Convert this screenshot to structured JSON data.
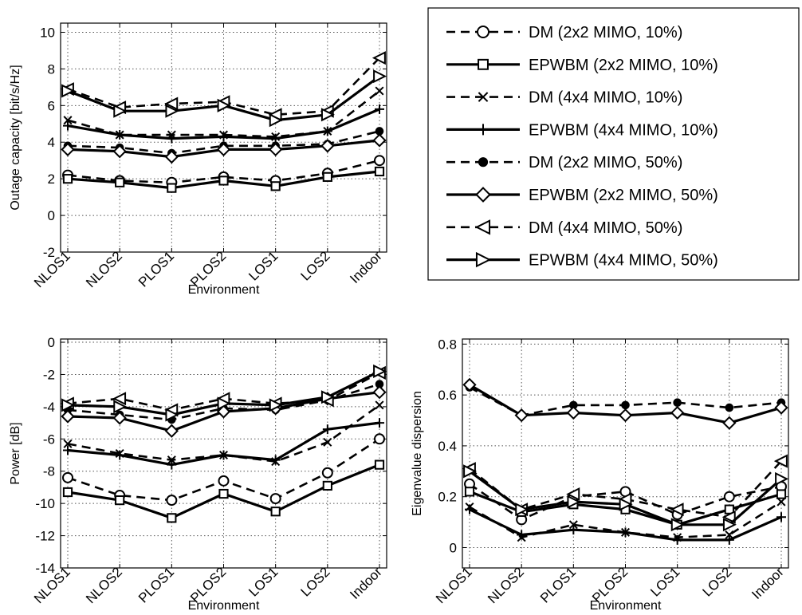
{
  "chart_data": [
    {
      "type": "line",
      "id": "capacity",
      "xlabel": "Environment",
      "ylabel": "Outage capacity [bit/s/Hz]",
      "categories": [
        "NLOS1",
        "NLOS2",
        "PLOS1",
        "PLOS2",
        "LOS1",
        "LOS2",
        "Indoor"
      ],
      "ylim": [
        -2,
        10.5
      ],
      "yticks": [
        -2,
        0,
        2,
        4,
        6,
        8,
        10
      ],
      "grid": true,
      "series": [
        {
          "name": "DM (2x2 MIMO, 10%)",
          "values": [
            2.2,
            1.9,
            1.8,
            2.1,
            1.9,
            2.3,
            3.0
          ]
        },
        {
          "name": "EPWBM (2x2 MIMO, 10%)",
          "values": [
            2.0,
            1.8,
            1.5,
            1.9,
            1.6,
            2.1,
            2.4
          ]
        },
        {
          "name": "DM (4x4 MIMO, 10%)",
          "values": [
            5.2,
            4.4,
            4.4,
            4.4,
            4.3,
            4.6,
            6.8
          ]
        },
        {
          "name": "EPWBM (4x4 MIMO, 10%)",
          "values": [
            4.9,
            4.4,
            4.2,
            4.3,
            4.2,
            4.6,
            5.8
          ]
        },
        {
          "name": "DM (2x2 MIMO, 50%)",
          "values": [
            3.8,
            3.7,
            3.4,
            3.8,
            3.8,
            3.9,
            4.6
          ]
        },
        {
          "name": "EPWBM (2x2 MIMO, 50%)",
          "values": [
            3.6,
            3.5,
            3.2,
            3.6,
            3.6,
            3.8,
            4.1
          ]
        },
        {
          "name": "DM (4x4 MIMO, 50%)",
          "values": [
            6.9,
            5.9,
            6.1,
            6.2,
            5.5,
            5.7,
            8.6
          ]
        },
        {
          "name": "EPWBM (4x4 MIMO, 50%)",
          "values": [
            6.8,
            5.7,
            5.7,
            6.0,
            5.2,
            5.5,
            7.6
          ]
        }
      ]
    },
    {
      "type": "line",
      "id": "power",
      "xlabel": "Environment",
      "ylabel": "Power [dB]",
      "categories": [
        "NLOS1",
        "NLOS2",
        "PLOS1",
        "PLOS2",
        "LOS1",
        "LOS2",
        "Indoor"
      ],
      "ylim": [
        -14,
        0.2
      ],
      "yticks": [
        -14,
        -12,
        -10,
        -8,
        -6,
        -4,
        -2,
        0
      ],
      "grid": true,
      "series": [
        {
          "name": "DM (2x2 MIMO, 10%)",
          "values": [
            -8.4,
            -9.5,
            -9.8,
            -8.6,
            -9.7,
            -8.1,
            -6.0
          ]
        },
        {
          "name": "EPWBM (2x2 MIMO, 10%)",
          "values": [
            -9.3,
            -9.8,
            -10.9,
            -9.4,
            -10.5,
            -8.9,
            -7.6
          ]
        },
        {
          "name": "DM (4x4 MIMO, 10%)",
          "values": [
            -6.3,
            -6.9,
            -7.3,
            -7.0,
            -7.4,
            -6.2,
            -3.9
          ]
        },
        {
          "name": "EPWBM (4x4 MIMO, 10%)",
          "values": [
            -6.7,
            -7.0,
            -7.6,
            -7.0,
            -7.3,
            -5.4,
            -5.0
          ]
        },
        {
          "name": "DM (2x2 MIMO, 50%)",
          "values": [
            -4.2,
            -4.5,
            -4.8,
            -4.1,
            -4.2,
            -3.6,
            -2.6
          ]
        },
        {
          "name": "EPWBM (2x2 MIMO, 50%)",
          "values": [
            -4.6,
            -4.7,
            -5.5,
            -4.3,
            -4.1,
            -3.5,
            -3.1
          ]
        },
        {
          "name": "DM (4x4 MIMO, 50%)",
          "values": [
            -3.8,
            -3.5,
            -4.2,
            -3.5,
            -3.8,
            -3.6,
            -1.9
          ]
        },
        {
          "name": "EPWBM (4x4 MIMO, 50%)",
          "values": [
            -3.9,
            -4.0,
            -4.5,
            -3.8,
            -3.9,
            -3.4,
            -1.8
          ]
        }
      ]
    },
    {
      "type": "line",
      "id": "dispersion",
      "xlabel": "Environment",
      "ylabel": "Eigenvalue dispersion",
      "categories": [
        "NLOS1",
        "NLOS2",
        "PLOS1",
        "PLOS2",
        "LOS1",
        "LOS2",
        "Indoor"
      ],
      "ylim": [
        -0.08,
        0.82
      ],
      "yticks": [
        0,
        0.2,
        0.4,
        0.6,
        0.8
      ],
      "grid": true,
      "series": [
        {
          "name": "DM (2x2 MIMO, 10%)",
          "values": [
            0.25,
            0.11,
            0.2,
            0.22,
            0.13,
            0.2,
            0.24
          ]
        },
        {
          "name": "EPWBM (2x2 MIMO, 10%)",
          "values": [
            0.22,
            0.14,
            0.17,
            0.15,
            0.09,
            0.15,
            0.21
          ]
        },
        {
          "name": "DM (4x4 MIMO, 10%)",
          "values": [
            0.16,
            0.04,
            0.09,
            0.06,
            0.04,
            0.05,
            0.18
          ]
        },
        {
          "name": "EPWBM (4x4 MIMO, 10%)",
          "values": [
            0.15,
            0.05,
            0.07,
            0.06,
            0.03,
            0.03,
            0.12
          ]
        },
        {
          "name": "DM (2x2 MIMO, 50%)",
          "values": [
            0.63,
            0.52,
            0.56,
            0.56,
            0.57,
            0.55,
            0.57
          ]
        },
        {
          "name": "EPWBM (2x2 MIMO, 50%)",
          "values": [
            0.64,
            0.52,
            0.53,
            0.52,
            0.53,
            0.49,
            0.55
          ]
        },
        {
          "name": "DM (4x4 MIMO, 50%)",
          "values": [
            0.31,
            0.15,
            0.21,
            0.19,
            0.15,
            0.12,
            0.34
          ]
        },
        {
          "name": "EPWBM (4x4 MIMO, 50%)",
          "values": [
            0.3,
            0.15,
            0.18,
            0.17,
            0.09,
            0.09,
            0.27
          ]
        }
      ]
    }
  ],
  "legend": {
    "placement": "top-right",
    "entries": [
      {
        "label": "DM (2x2 MIMO, 10%)",
        "style": "dashed",
        "marker": "circle"
      },
      {
        "label": "EPWBM (2x2 MIMO, 10%)",
        "style": "solid",
        "marker": "square"
      },
      {
        "label": "DM (4x4 MIMO, 10%)",
        "style": "dashed",
        "marker": "x"
      },
      {
        "label": "EPWBM (4x4 MIMO, 10%)",
        "style": "solid",
        "marker": "plus"
      },
      {
        "label": "DM (2x2 MIMO, 50%)",
        "style": "dashed",
        "marker": "dot"
      },
      {
        "label": "EPWBM (2x2 MIMO, 50%)",
        "style": "solid",
        "marker": "diamond"
      },
      {
        "label": "DM (4x4 MIMO, 50%)",
        "style": "dashed",
        "marker": "triangle-left"
      },
      {
        "label": "EPWBM (4x4 MIMO, 50%)",
        "style": "solid",
        "marker": "triangle-right"
      }
    ]
  },
  "colors": {
    "line": "#000000",
    "grid": "#555555",
    "background": "#ffffff"
  }
}
